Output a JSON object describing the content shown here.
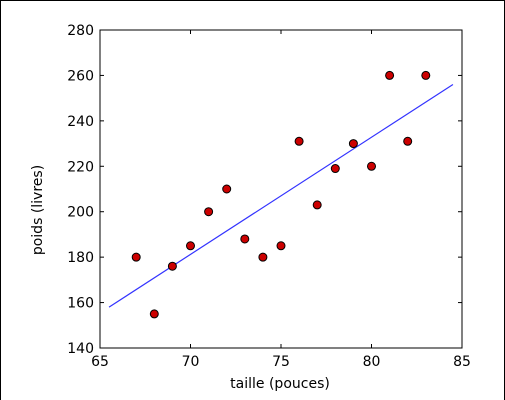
{
  "chart_data": {
    "type": "scatter",
    "title": "",
    "xlabel": "taille (pouces)",
    "ylabel": "poids (livres)",
    "xlim": [
      65,
      85
    ],
    "ylim": [
      140,
      280
    ],
    "xticks": [
      65,
      70,
      75,
      80,
      85
    ],
    "yticks": [
      140,
      160,
      180,
      200,
      220,
      240,
      260,
      280
    ],
    "grid": false,
    "series": [
      {
        "kind": "points",
        "color": "#cc0000",
        "edge_color": "#000000",
        "points": [
          {
            "x": 67,
            "y": 180
          },
          {
            "x": 68,
            "y": 155
          },
          {
            "x": 69,
            "y": 176
          },
          {
            "x": 70,
            "y": 185
          },
          {
            "x": 71,
            "y": 200
          },
          {
            "x": 72,
            "y": 210
          },
          {
            "x": 73,
            "y": 188
          },
          {
            "x": 74,
            "y": 180
          },
          {
            "x": 75,
            "y": 185
          },
          {
            "x": 76,
            "y": 231
          },
          {
            "x": 77,
            "y": 203
          },
          {
            "x": 78,
            "y": 219
          },
          {
            "x": 79,
            "y": 230
          },
          {
            "x": 80,
            "y": 220
          },
          {
            "x": 81,
            "y": 260
          },
          {
            "x": 82,
            "y": 231
          },
          {
            "x": 83,
            "y": 260
          }
        ]
      },
      {
        "kind": "fit-line",
        "color": "#3333ff",
        "points": [
          {
            "x": 65.5,
            "y": 158
          },
          {
            "x": 84.5,
            "y": 256
          }
        ]
      }
    ]
  }
}
